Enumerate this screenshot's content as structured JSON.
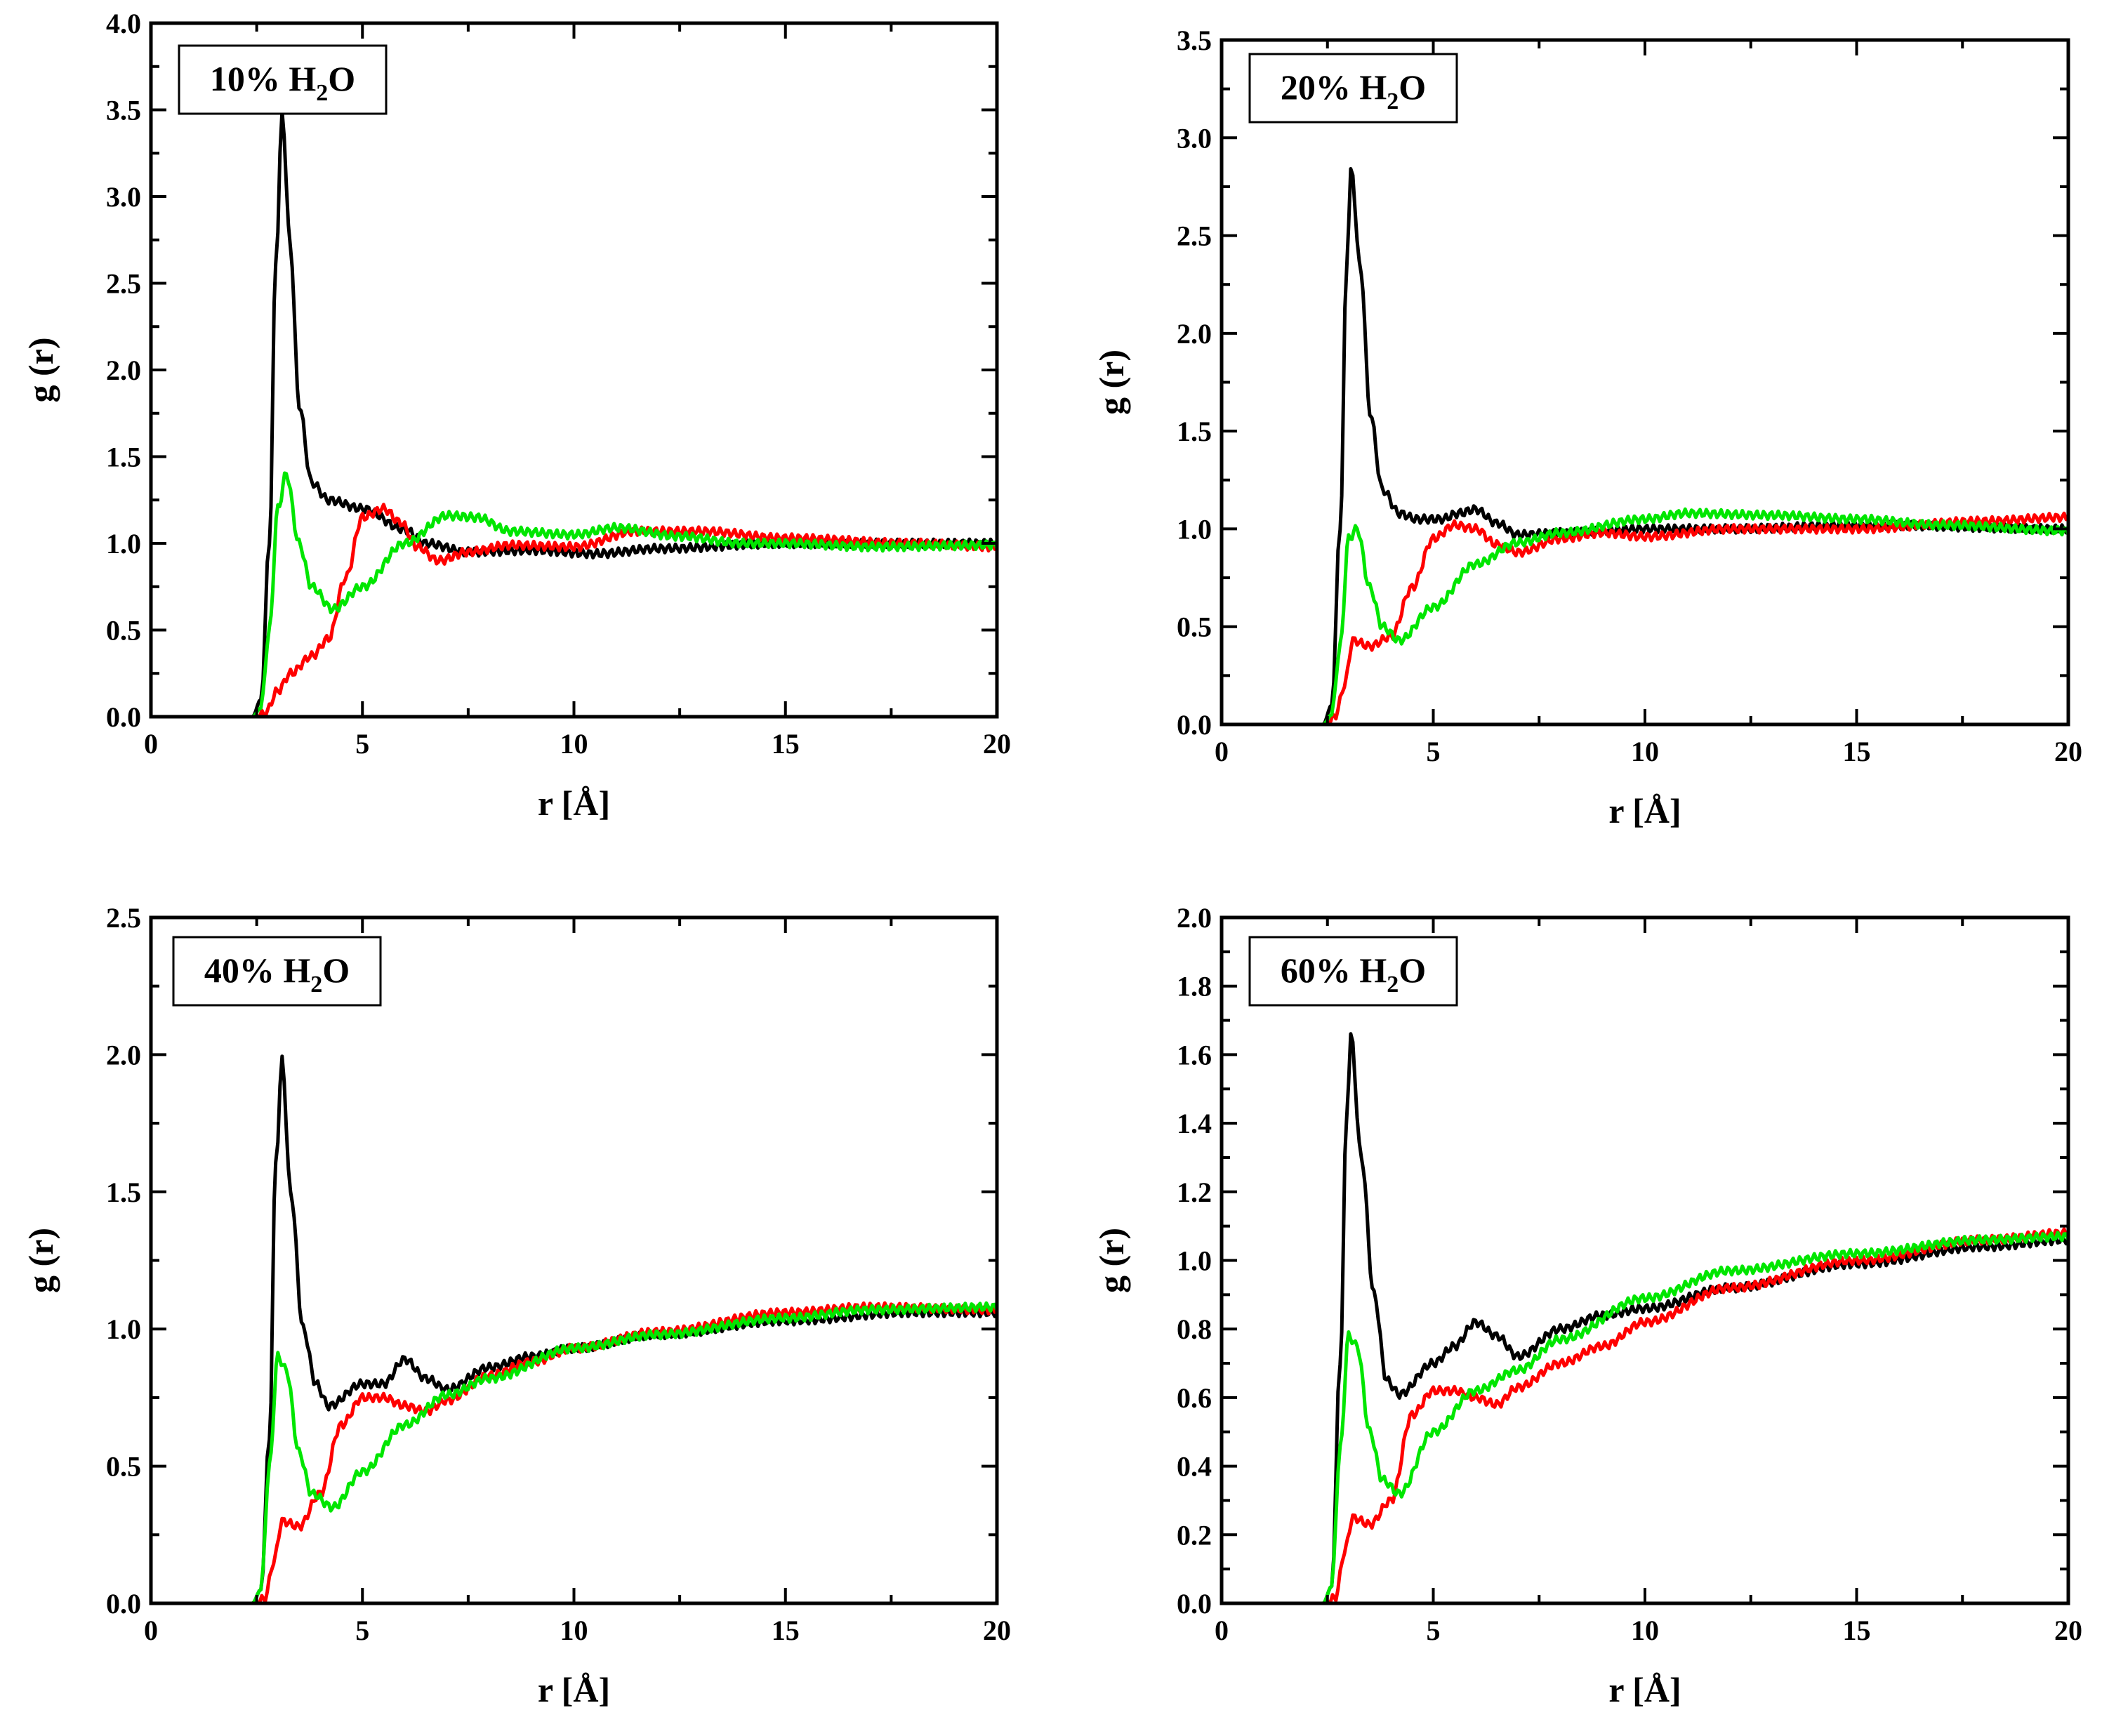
{
  "chart_data": [
    {
      "type": "line",
      "panel": "top-left",
      "label_prefix": "10% H",
      "label_sub": "2",
      "label_suffix": "O",
      "xlabel": "r [Å]",
      "ylabel": "g (r)",
      "xlim": [
        0,
        20
      ],
      "ylim": [
        0,
        4.0
      ],
      "xticks": [
        "0",
        "5",
        "10",
        "15",
        "20"
      ],
      "yticks": [
        "0.0",
        "0.5",
        "1.0",
        "1.5",
        "2.0",
        "2.5",
        "3.0",
        "3.5",
        "4.0"
      ],
      "series": [
        {
          "name": "black",
          "color": "#000000",
          "x": [
            0,
            2.4,
            2.6,
            2.8,
            2.95,
            3.1,
            3.3,
            3.5,
            3.8,
            4.2,
            5.0,
            6.0,
            6.5,
            7.5,
            9,
            10.5,
            12,
            15,
            18,
            20
          ],
          "y": [
            0,
            0,
            0.1,
            1.0,
            2.6,
            3.47,
            2.7,
            1.8,
            1.35,
            1.25,
            1.2,
            1.08,
            1.0,
            0.95,
            0.96,
            0.94,
            0.97,
            1.0,
            1.0,
            1.0
          ]
        },
        {
          "name": "red",
          "color": "#ff0000",
          "x": [
            0,
            2.5,
            2.7,
            3.0,
            3.3,
            3.8,
            4.2,
            4.6,
            5.0,
            5.5,
            5.9,
            6.3,
            6.8,
            7.5,
            8.5,
            10,
            11.5,
            13,
            15,
            18,
            20
          ],
          "y": [
            0,
            0,
            0.02,
            0.15,
            0.25,
            0.35,
            0.45,
            0.8,
            1.15,
            1.2,
            1.12,
            0.98,
            0.9,
            0.95,
            0.99,
            0.98,
            1.07,
            1.07,
            1.03,
            1.0,
            0.98
          ]
        },
        {
          "name": "green",
          "color": "#00e600",
          "x": [
            0,
            2.4,
            2.6,
            2.8,
            3.0,
            3.2,
            3.5,
            3.8,
            4.3,
            5.0,
            6.0,
            7.0,
            7.7,
            8.5,
            10,
            11,
            12.5,
            14,
            15,
            17,
            20
          ],
          "y": [
            0,
            0,
            0.05,
            0.5,
            1.2,
            1.4,
            1.0,
            0.75,
            0.62,
            0.75,
            1.0,
            1.16,
            1.15,
            1.07,
            1.05,
            1.09,
            1.04,
            1.0,
            1.0,
            0.98,
            0.99
          ]
        }
      ]
    },
    {
      "type": "line",
      "panel": "top-right",
      "label_prefix": "20% H",
      "label_sub": "2",
      "label_suffix": "O",
      "xlabel": "r [Å]",
      "ylabel": "g (r)",
      "xlim": [
        0,
        20
      ],
      "ylim": [
        0,
        3.5
      ],
      "xticks": [
        "0",
        "5",
        "10",
        "15",
        "20"
      ],
      "yticks": [
        "0.0",
        "0.5",
        "1.0",
        "1.5",
        "2.0",
        "2.5",
        "3.0",
        "3.5"
      ],
      "series": [
        {
          "name": "black",
          "color": "#000000",
          "x": [
            0,
            2.4,
            2.6,
            2.8,
            2.95,
            3.05,
            3.3,
            3.5,
            3.8,
            4.2,
            4.6,
            5.2,
            5.6,
            6.0,
            6.5,
            7.0,
            8,
            10,
            12,
            15,
            20
          ],
          "y": [
            0,
            0,
            0.1,
            1.0,
            2.3,
            2.84,
            2.3,
            1.6,
            1.2,
            1.08,
            1.05,
            1.05,
            1.08,
            1.1,
            1.03,
            0.97,
            0.98,
            1.0,
            1.0,
            1.02,
            1.0
          ]
        },
        {
          "name": "red",
          "color": "#ff0000",
          "x": [
            0,
            2.5,
            2.7,
            2.9,
            3.1,
            3.5,
            4.0,
            4.5,
            5.0,
            5.5,
            6.0,
            6.5,
            7.0,
            8,
            9,
            10,
            12,
            15,
            18,
            20
          ],
          "y": [
            0,
            0,
            0.05,
            0.2,
            0.43,
            0.4,
            0.45,
            0.7,
            0.95,
            1.02,
            1.0,
            0.92,
            0.88,
            0.95,
            0.98,
            0.96,
            1.0,
            1.0,
            1.04,
            1.06
          ]
        },
        {
          "name": "green",
          "color": "#00e600",
          "x": [
            0,
            2.4,
            2.6,
            2.8,
            3.0,
            3.2,
            3.5,
            3.8,
            4.2,
            5.0,
            6.0,
            7.0,
            8.0,
            10,
            11,
            13,
            15,
            17,
            20
          ],
          "y": [
            0,
            0,
            0.05,
            0.4,
            0.95,
            1.0,
            0.7,
            0.5,
            0.43,
            0.6,
            0.82,
            0.93,
            0.98,
            1.05,
            1.08,
            1.07,
            1.05,
            1.02,
            0.99
          ]
        }
      ]
    },
    {
      "type": "line",
      "panel": "bottom-left",
      "label_prefix": "40% H",
      "label_sub": "2",
      "label_suffix": "O",
      "xlabel": "r [Å]",
      "ylabel": "g (r)",
      "xlim": [
        0,
        20
      ],
      "ylim": [
        0,
        2.5
      ],
      "xticks": [
        "0",
        "5",
        "10",
        "15",
        "20"
      ],
      "yticks": [
        "0.0",
        "0.5",
        "1.0",
        "1.5",
        "2.0",
        "2.5"
      ],
      "series": [
        {
          "name": "black",
          "color": "#000000",
          "x": [
            0,
            2.4,
            2.6,
            2.8,
            2.95,
            3.1,
            3.3,
            3.6,
            3.9,
            4.2,
            5.0,
            5.5,
            6.0,
            6.5,
            7.0,
            8,
            9,
            10,
            12,
            15,
            18,
            20
          ],
          "y": [
            0,
            0,
            0.05,
            0.6,
            1.6,
            1.98,
            1.5,
            1.0,
            0.8,
            0.72,
            0.8,
            0.8,
            0.89,
            0.82,
            0.78,
            0.86,
            0.9,
            0.93,
            0.98,
            1.03,
            1.06,
            1.06
          ]
        },
        {
          "name": "red",
          "color": "#ff0000",
          "x": [
            0,
            2.5,
            2.7,
            2.9,
            3.1,
            3.5,
            4.0,
            4.5,
            5.0,
            5.5,
            6.0,
            6.5,
            7.0,
            8,
            9,
            10,
            12,
            15,
            17,
            20
          ],
          "y": [
            0,
            0,
            0.02,
            0.15,
            0.3,
            0.28,
            0.4,
            0.65,
            0.75,
            0.75,
            0.72,
            0.7,
            0.74,
            0.83,
            0.88,
            0.93,
            0.99,
            1.06,
            1.08,
            1.07
          ]
        },
        {
          "name": "green",
          "color": "#00e600",
          "x": [
            0,
            2.4,
            2.6,
            2.8,
            3.0,
            3.2,
            3.5,
            3.8,
            4.3,
            5.0,
            6.0,
            7.0,
            8,
            10,
            12,
            15,
            17,
            20
          ],
          "y": [
            0,
            0,
            0.05,
            0.5,
            0.9,
            0.85,
            0.55,
            0.4,
            0.35,
            0.48,
            0.65,
            0.76,
            0.82,
            0.93,
            0.98,
            1.04,
            1.07,
            1.08
          ]
        }
      ]
    },
    {
      "type": "line",
      "panel": "bottom-right",
      "label_prefix": "60% H",
      "label_sub": "2",
      "label_suffix": "O",
      "xlabel": "r [Å]",
      "ylabel": "g (r)",
      "xlim": [
        0,
        20
      ],
      "ylim": [
        0,
        2.0
      ],
      "xticks": [
        "0",
        "5",
        "10",
        "15",
        "20"
      ],
      "yticks": [
        "0.0",
        "0.2",
        "0.4",
        "0.6",
        "0.8",
        "1.0",
        "1.2",
        "1.4",
        "1.6",
        "1.8",
        "2.0"
      ],
      "series": [
        {
          "name": "black",
          "color": "#000000",
          "x": [
            0,
            2.4,
            2.6,
            2.8,
            2.95,
            3.05,
            3.3,
            3.6,
            3.9,
            4.2,
            5.0,
            5.5,
            6.0,
            6.5,
            7.0,
            8,
            9,
            10,
            12,
            15,
            18,
            20
          ],
          "y": [
            0,
            0,
            0.05,
            0.7,
            1.4,
            1.66,
            1.3,
            0.9,
            0.65,
            0.61,
            0.7,
            0.75,
            0.82,
            0.78,
            0.72,
            0.8,
            0.84,
            0.86,
            0.92,
            0.99,
            1.04,
            1.06
          ]
        },
        {
          "name": "red",
          "color": "#ff0000",
          "x": [
            0,
            2.5,
            2.7,
            2.9,
            3.1,
            3.5,
            4.0,
            4.5,
            5.0,
            5.5,
            6.0,
            6.5,
            7.0,
            8,
            9,
            10,
            12,
            15,
            18,
            20
          ],
          "y": [
            0,
            0,
            0.02,
            0.15,
            0.25,
            0.23,
            0.3,
            0.55,
            0.62,
            0.62,
            0.6,
            0.58,
            0.63,
            0.7,
            0.75,
            0.82,
            0.92,
            1.0,
            1.06,
            1.08
          ]
        },
        {
          "name": "green",
          "color": "#00e600",
          "x": [
            0,
            2.4,
            2.6,
            2.8,
            3.0,
            3.2,
            3.5,
            3.8,
            4.2,
            5.0,
            6.0,
            7.0,
            8,
            10,
            12,
            15,
            18,
            20
          ],
          "y": [
            0,
            0,
            0.05,
            0.45,
            0.78,
            0.75,
            0.5,
            0.36,
            0.32,
            0.5,
            0.62,
            0.68,
            0.77,
            0.89,
            0.97,
            1.02,
            1.06,
            1.07
          ]
        }
      ]
    }
  ]
}
